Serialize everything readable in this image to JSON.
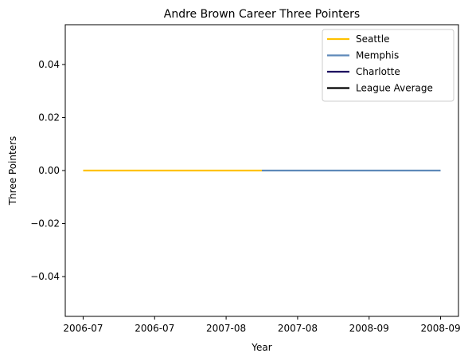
{
  "chart_data": {
    "type": "line",
    "title": "Andre Brown  Career Three Pointers",
    "xlabel": "Year",
    "ylabel": "Three Pointers",
    "ylim": [
      -0.055,
      0.055
    ],
    "yticks": [
      -0.04,
      -0.02,
      0.0,
      0.02,
      0.04
    ],
    "ytick_labels": [
      "−0.04",
      "−0.02",
      "0.00",
      "0.02",
      "0.04"
    ],
    "xlim": [
      -0.1,
      2.1
    ],
    "x_categories": [
      "2006-07",
      "2007-08",
      "2008-09"
    ],
    "x_values": [
      0,
      1,
      2
    ],
    "xticks": [
      0,
      0.4,
      0.8,
      1.2,
      1.6,
      2.0
    ],
    "xtick_labels": [
      "2006-07",
      "2006-07",
      "2007-08",
      "2007-08",
      "2008-09",
      "2008-09"
    ],
    "legend_position": "top-right",
    "series": [
      {
        "name": "Seattle",
        "color": "#FFC200",
        "x": [
          0,
          1
        ],
        "y": [
          0,
          0
        ]
      },
      {
        "name": "Memphis",
        "color": "#5D89B9",
        "x": [
          1,
          2
        ],
        "y": [
          0,
          0
        ]
      },
      {
        "name": "Charlotte",
        "color": "#1D1160",
        "x": [],
        "y": []
      },
      {
        "name": "League Average",
        "color": "#000000",
        "x": [],
        "y": []
      }
    ]
  }
}
